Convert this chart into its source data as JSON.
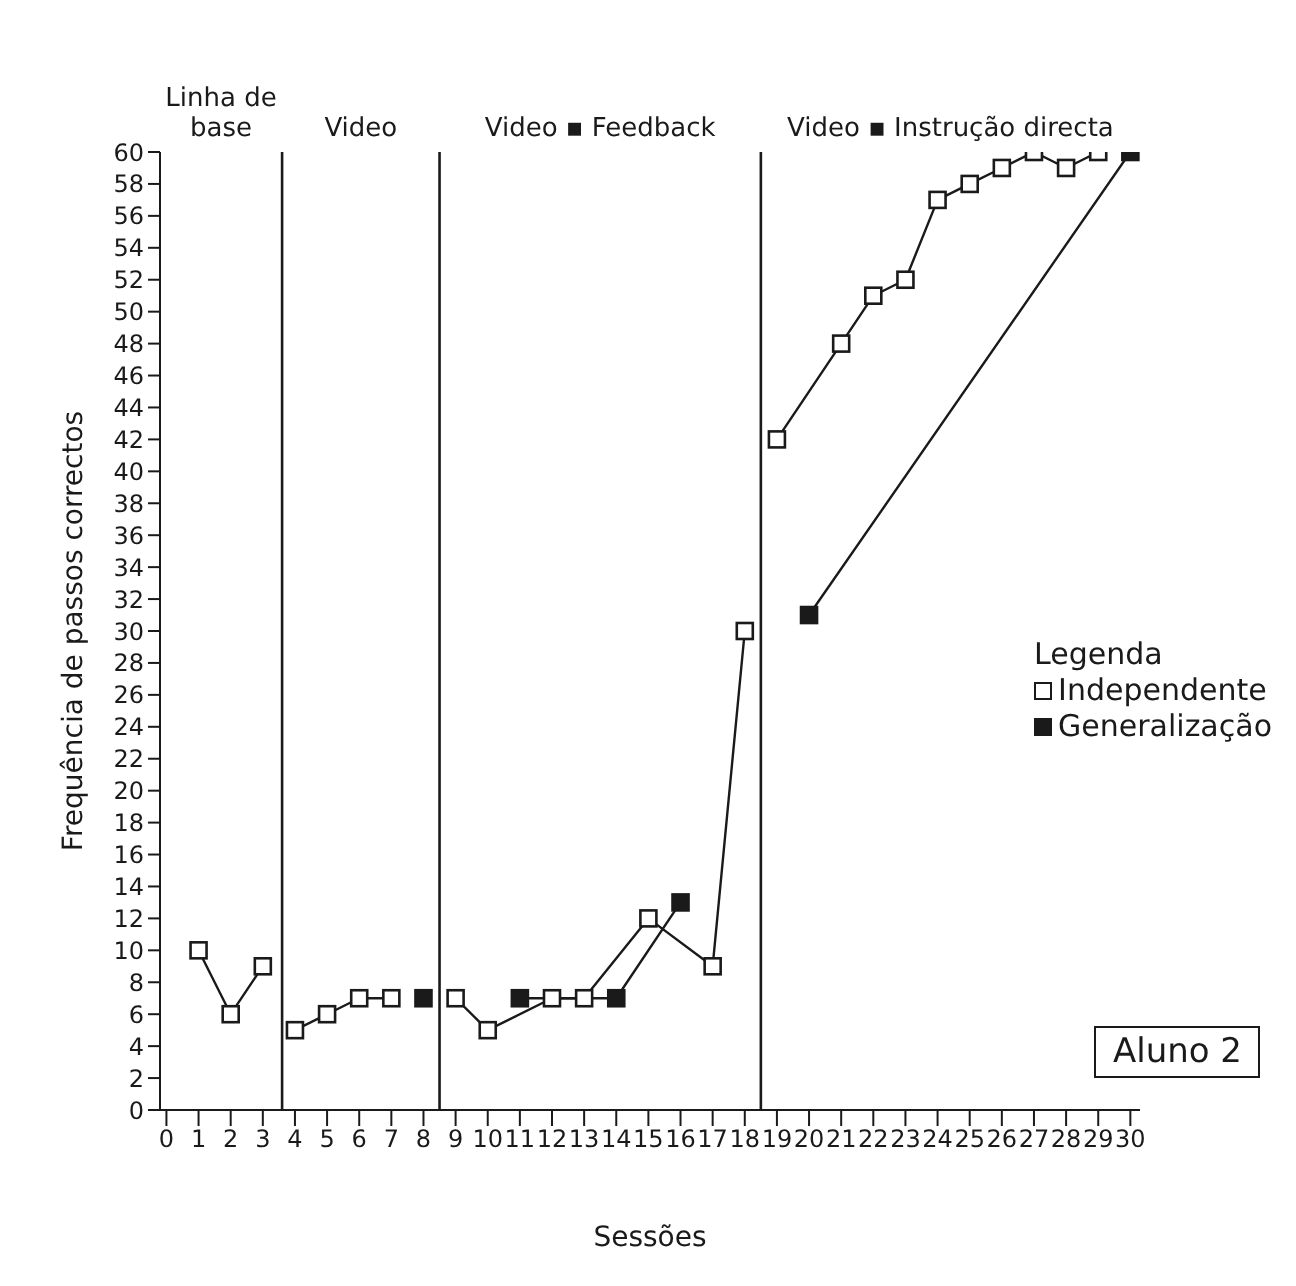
{
  "chart_data": {
    "type": "line",
    "xlabel": "Sessões",
    "ylabel": "Frequência de passos correctos",
    "legend_title": "Legenda",
    "xlim": [
      -0.2,
      30.3
    ],
    "xticks": [
      0,
      1,
      2,
      3,
      4,
      5,
      6,
      7,
      8,
      9,
      10,
      11,
      12,
      13,
      14,
      15,
      16,
      17,
      18,
      19,
      20,
      21,
      22,
      23,
      24,
      25,
      26,
      27,
      28,
      29,
      30
    ],
    "ylim": [
      0,
      60
    ],
    "yticks": [
      0,
      2,
      4,
      6,
      8,
      10,
      12,
      14,
      16,
      18,
      20,
      22,
      24,
      26,
      28,
      30,
      32,
      34,
      36,
      38,
      40,
      42,
      44,
      46,
      48,
      50,
      52,
      54,
      56,
      58,
      60
    ],
    "grid": false,
    "legend": "right",
    "marker": "square",
    "line_style": "solid",
    "series": [
      {
        "name": "Independente",
        "color": "#1a1a1a",
        "x": [
          1,
          2,
          3,
          3.6,
          4,
          5,
          6,
          7,
          8.5,
          9,
          10,
          12,
          13,
          15,
          17,
          18,
          18.5,
          19,
          21,
          22,
          23,
          24,
          25,
          26,
          27,
          28,
          29
        ],
        "values": [
          10,
          6,
          9,
          null,
          5,
          6,
          7,
          7,
          null,
          7,
          5,
          7,
          7,
          12,
          9,
          30,
          null,
          42,
          48,
          51,
          52,
          57,
          58,
          59,
          60,
          59,
          60
        ]
      },
      {
        "name": "Generalização",
        "color": "#1a1a1a",
        "x": [
          8,
          8.5,
          11,
          14,
          16,
          18.5,
          20,
          30
        ],
        "values": [
          7,
          null,
          7,
          7,
          13,
          null,
          31,
          60
        ]
      }
    ],
    "ref_lines": [
      {
        "axis": "x",
        "value": 3.6
      },
      {
        "axis": "x",
        "value": 8.5
      },
      {
        "axis": "x",
        "value": 18.5
      }
    ],
    "annotations": [
      "Linha de base",
      "Video",
      "Video ▪ Feedback",
      "Video ▪ Instrução directa",
      "Aluno 2"
    ]
  }
}
